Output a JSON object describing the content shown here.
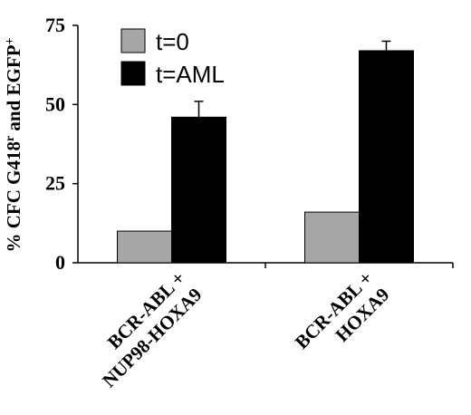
{
  "chart_data": {
    "type": "bar",
    "title": "",
    "xlabel": "",
    "ylabel": "% CFC G418r and EGFP+",
    "ylabel_parts": {
      "main": "% CFC G418",
      "sup1": "r",
      "mid": " and EGFP",
      "sup2": "+"
    },
    "ylim": [
      0,
      75
    ],
    "yticks": [
      "0",
      "25",
      "50",
      "75"
    ],
    "categories": [
      [
        "BCR-ABL +",
        "NUP98-HOXA9"
      ],
      [
        "BCR-ABL +",
        "HOXA9"
      ]
    ],
    "series": [
      {
        "name": "t=0",
        "color": "#a6a6a6",
        "values": [
          10,
          16
        ],
        "errors": [
          0,
          0
        ]
      },
      {
        "name": "t=AML",
        "color": "#000000",
        "values": [
          46,
          67
        ],
        "errors": [
          5,
          3
        ]
      }
    ],
    "legend_position": "top-left"
  }
}
